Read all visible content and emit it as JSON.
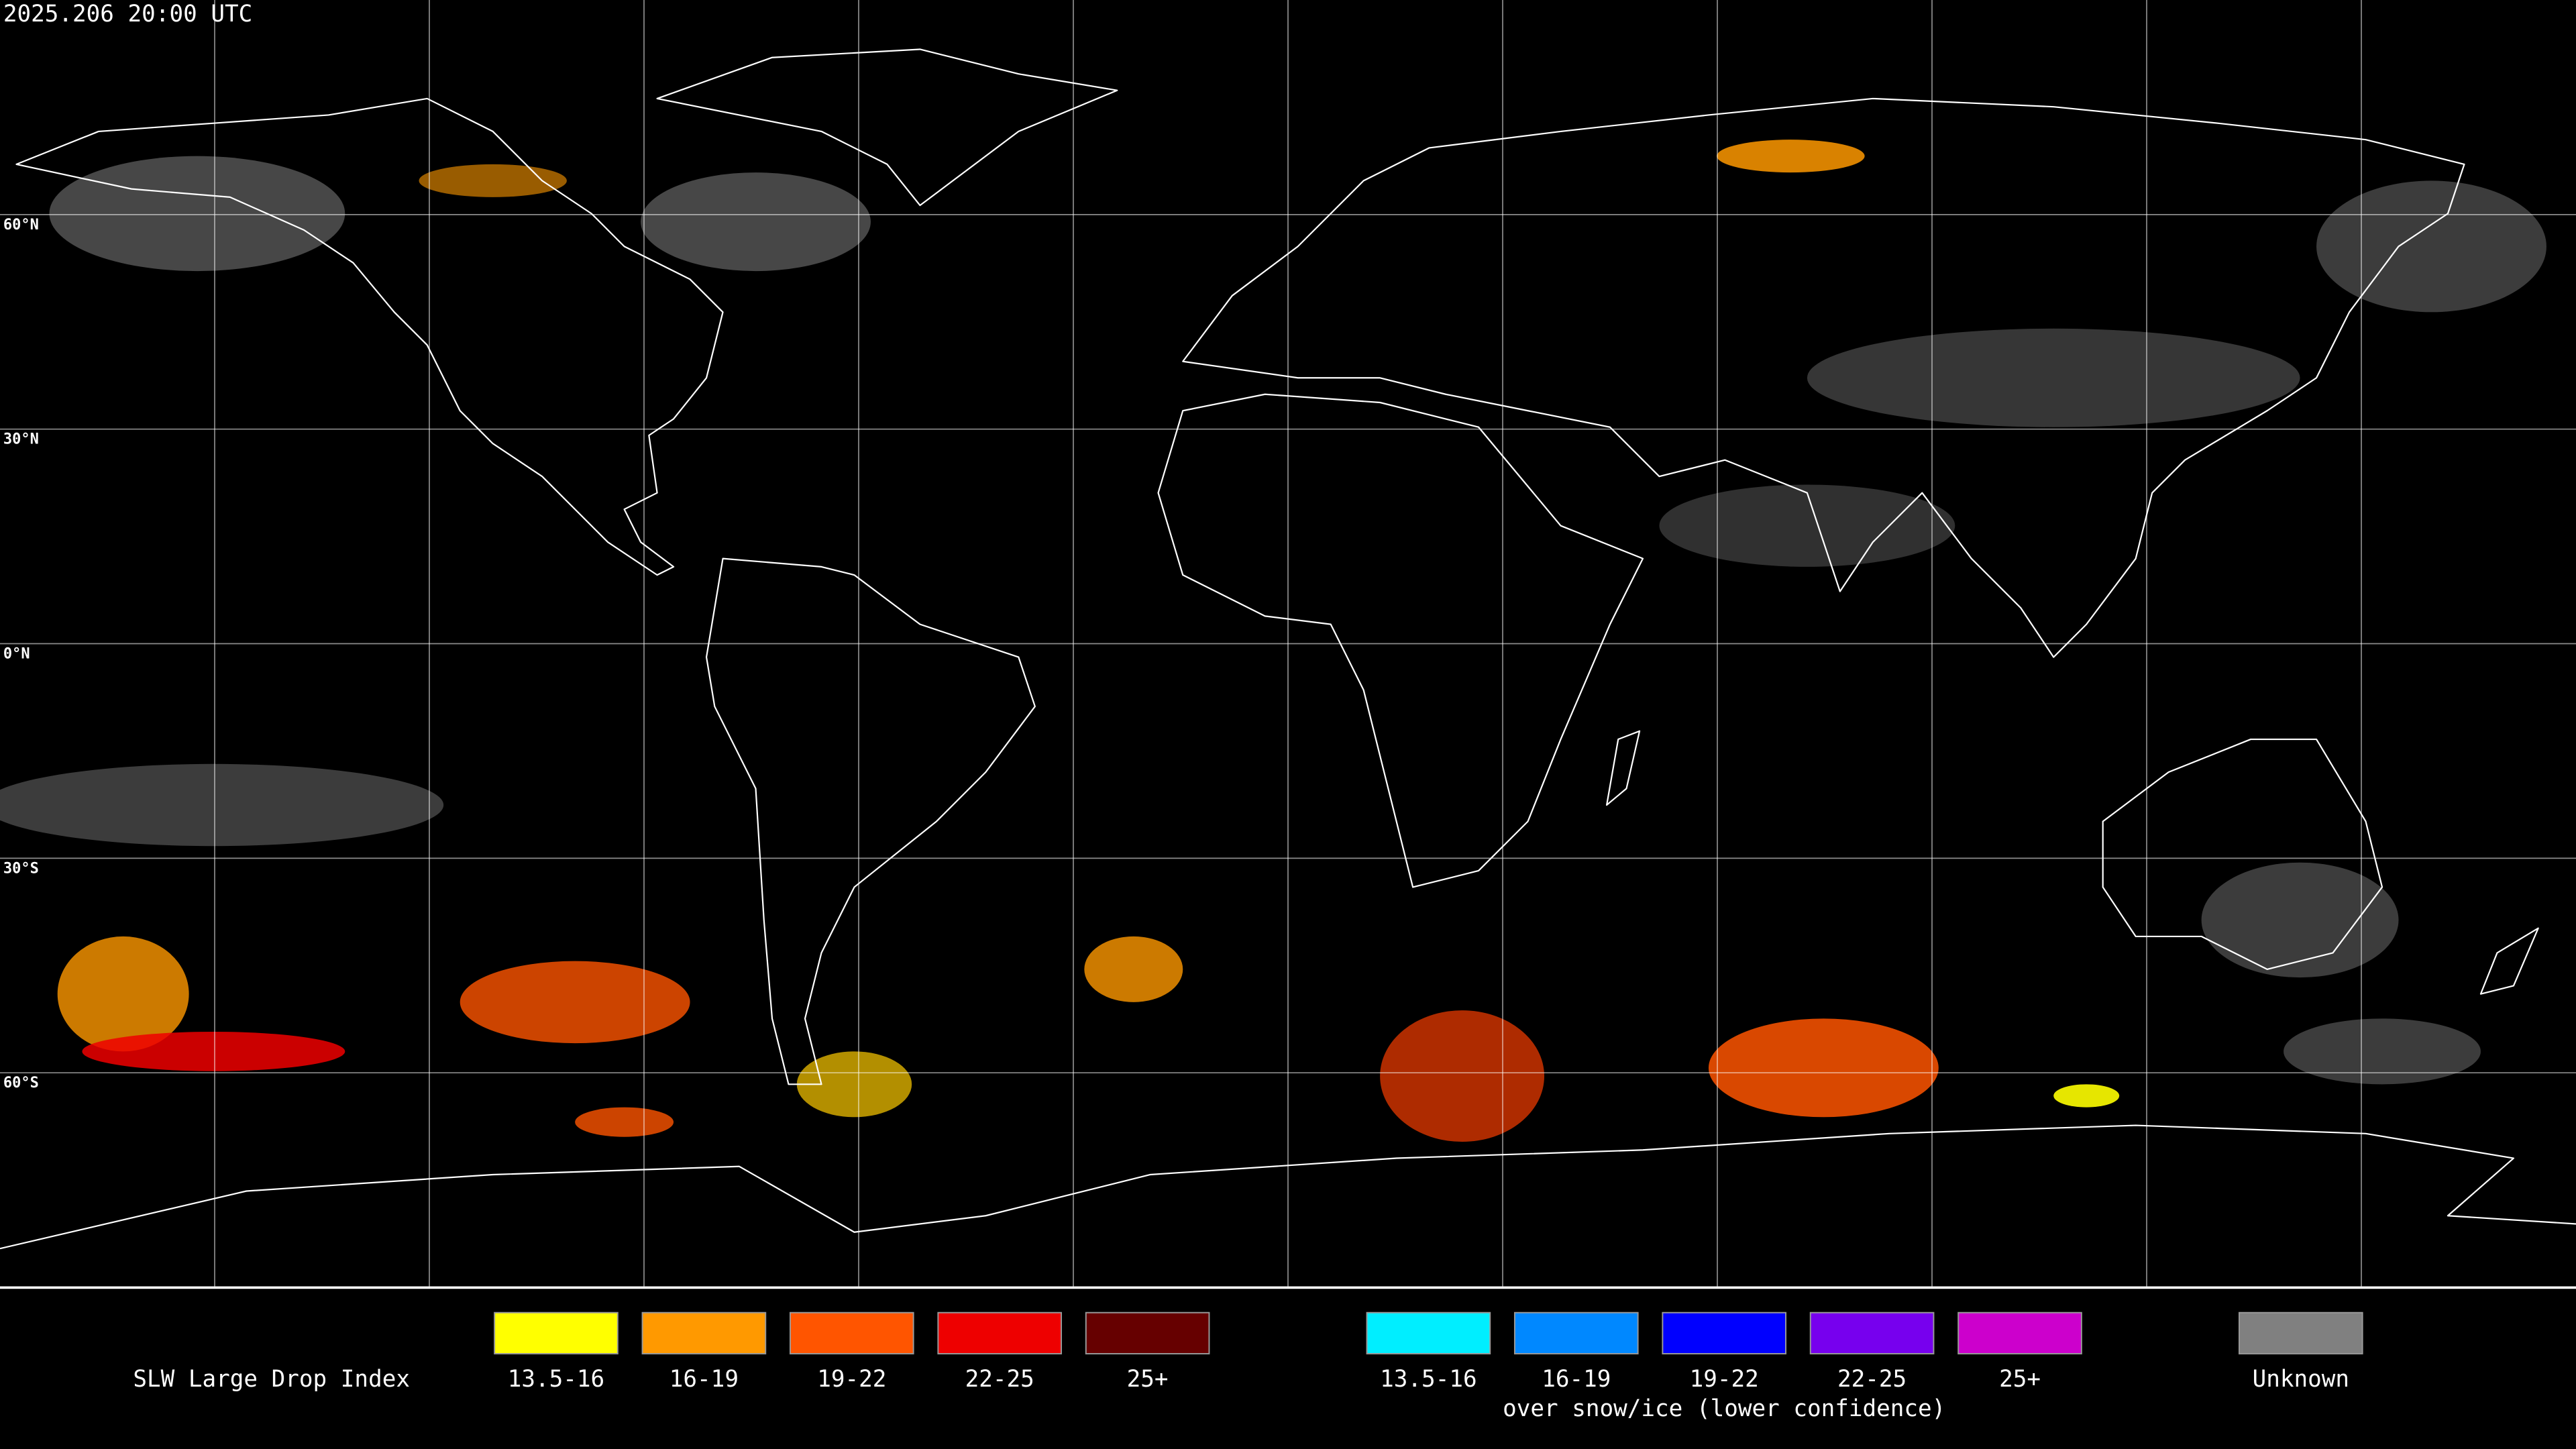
{
  "header": {
    "timestamp": "2025.206 20:00 UTC"
  },
  "map": {
    "latitude_labels": [
      "60°N",
      "30°N",
      "0°N",
      "30°S",
      "60°S"
    ]
  },
  "legend": {
    "title": "SLW Large Drop Index",
    "groups": [
      {
        "items": [
          {
            "label": "13.5-16",
            "color": "#ffff00"
          },
          {
            "label": "16-19",
            "color": "#ff9900"
          },
          {
            "label": "19-22",
            "color": "#ff5500"
          },
          {
            "label": "22-25",
            "color": "#ee0000"
          },
          {
            "label": "25+",
            "color": "#660000"
          }
        ]
      },
      {
        "caption": "over snow/ice (lower confidence)",
        "items": [
          {
            "label": "13.5-16",
            "color": "#00eeff"
          },
          {
            "label": "16-19",
            "color": "#0088ff"
          },
          {
            "label": "19-22",
            "color": "#0000ff"
          },
          {
            "label": "22-25",
            "color": "#7700ee"
          },
          {
            "label": "25+",
            "color": "#cc00cc"
          }
        ]
      },
      {
        "items": [
          {
            "label": "Unknown",
            "color": "#808080"
          }
        ]
      }
    ]
  }
}
